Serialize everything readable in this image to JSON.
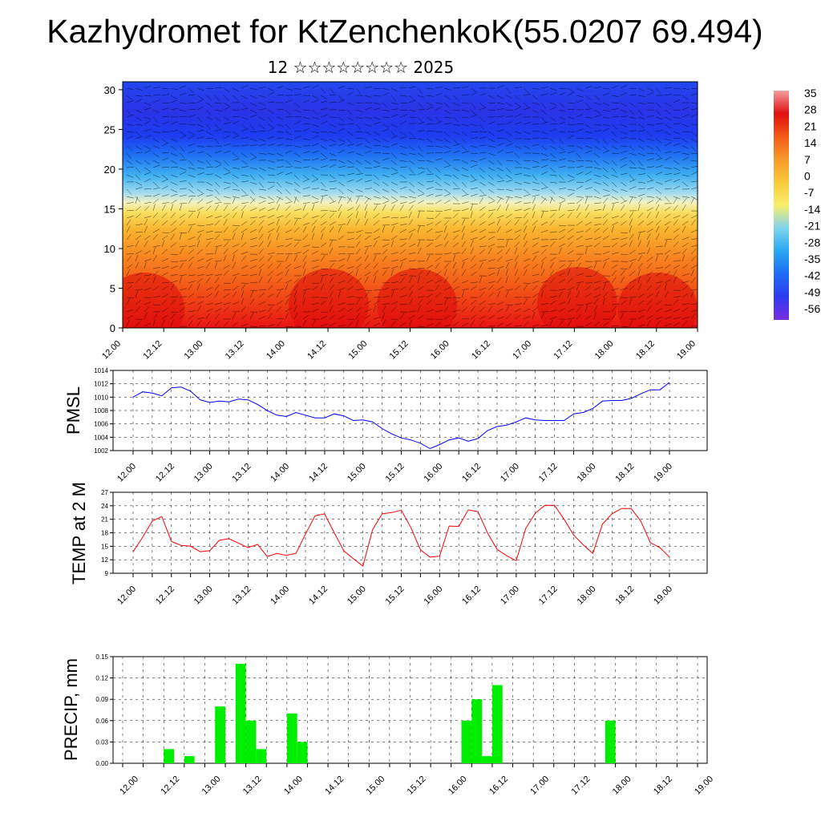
{
  "header": {
    "title": "Kazhydromet for KtZenchenkoK(55.0207 69.494)",
    "subtitle": "12 ☆☆☆☆☆☆☆☆ 2025"
  },
  "colors": {
    "pmsl_line": "#0000ff",
    "temp_line": "#ff0000",
    "precip_bar": "#00ee00",
    "colormap": [
      "#7a2ee0",
      "#2e3bf0",
      "#1f6cf5",
      "#29a8f0",
      "#7fd3ef",
      "#f7ef6a",
      "#f9c93a",
      "#f79a2a",
      "#f25a16",
      "#e01010",
      "#f4a0a0"
    ]
  },
  "time_ticks": [
    "12.00",
    "12.12",
    "13.00",
    "13.12",
    "14.00",
    "14.12",
    "15.00",
    "15.12",
    "16.00",
    "16.12",
    "17.00",
    "17.12",
    "18.00",
    "18.12",
    "19.00"
  ],
  "chart_data": [
    {
      "type": "heatmap",
      "name": "section",
      "xlabel": "",
      "ylabel": "",
      "y_ticks": [
        "0",
        "5",
        "10",
        "15",
        "20",
        "25",
        "30"
      ],
      "ylim": [
        0,
        31
      ],
      "colorbar_labels": [
        "35",
        "28",
        "21",
        "14",
        "7",
        "0",
        "-7",
        "-14",
        "-21",
        "-28",
        "-35",
        "-42",
        "-49",
        "-56"
      ],
      "note_levels": {
        "warm_layer_top": 15,
        "cold_core": 25
      }
    },
    {
      "type": "line",
      "name": "pmsl",
      "ylabel": "PMSL",
      "ylim": [
        1002,
        1014
      ],
      "y_ticks": [
        "1014",
        "1012",
        "1010",
        "1008",
        "1006",
        "1004",
        "1002"
      ],
      "x": [
        0,
        0.125,
        0.25,
        0.375,
        0.5,
        0.625,
        0.75,
        0.875,
        1,
        1.125,
        1.25,
        1.375,
        1.5,
        1.625,
        1.75,
        1.875,
        2,
        2.125,
        2.25,
        2.375,
        2.5,
        2.625,
        2.75,
        2.875,
        3,
        3.125,
        3.25,
        3.375,
        3.5,
        3.625,
        3.75,
        3.875,
        4,
        4.125,
        4.25,
        4.375,
        4.5,
        4.625,
        4.75,
        4.875,
        5,
        5.125,
        5.25,
        5.375,
        5.5,
        5.625,
        5.75,
        5.875,
        6,
        6.125,
        6.25,
        6.375,
        6.5,
        6.625,
        6.75,
        6.875,
        7
      ],
      "values": [
        1010.0,
        1010.8,
        1010.6,
        1010.2,
        1011.4,
        1011.5,
        1010.9,
        1009.6,
        1009.2,
        1009.4,
        1009.3,
        1009.7,
        1009.6,
        1008.9,
        1008.0,
        1007.3,
        1007.1,
        1007.7,
        1007.3,
        1006.9,
        1006.9,
        1007.5,
        1007.2,
        1006.5,
        1006.6,
        1006.3,
        1005.3,
        1004.5,
        1003.9,
        1003.6,
        1003.1,
        1002.3,
        1002.9,
        1003.6,
        1003.9,
        1003.4,
        1003.8,
        1005.0,
        1005.6,
        1005.8,
        1006.3,
        1006.9,
        1006.6,
        1006.5,
        1006.5,
        1006.5,
        1007.5,
        1007.7,
        1008.3,
        1009.4,
        1009.5,
        1009.5,
        1009.8,
        1010.5,
        1011.1,
        1011.1,
        1012.2
      ]
    },
    {
      "type": "line",
      "name": "temp",
      "ylabel": "TEMP at 2 M",
      "ylim": [
        9,
        27
      ],
      "y_ticks": [
        "27",
        "24",
        "21",
        "18",
        "15",
        "12",
        "9"
      ],
      "x": [
        0,
        0.125,
        0.25,
        0.375,
        0.5,
        0.625,
        0.75,
        0.875,
        1,
        1.125,
        1.25,
        1.375,
        1.5,
        1.625,
        1.75,
        1.875,
        2,
        2.125,
        2.25,
        2.375,
        2.5,
        2.625,
        2.75,
        2.875,
        3,
        3.125,
        3.25,
        3.375,
        3.5,
        3.625,
        3.75,
        3.875,
        4,
        4.125,
        4.25,
        4.375,
        4.5,
        4.625,
        4.75,
        4.875,
        5,
        5.125,
        5.25,
        5.375,
        5.5,
        5.625,
        5.75,
        5.875,
        6,
        6.125,
        6.25,
        6.375,
        6.5,
        6.625,
        6.75,
        6.875,
        7
      ],
      "values": [
        13.8,
        17.0,
        20.6,
        21.6,
        16.1,
        15.2,
        15.0,
        13.8,
        14.0,
        16.3,
        16.7,
        15.7,
        14.7,
        15.4,
        12.7,
        13.4,
        13.0,
        13.4,
        17.7,
        21.8,
        22.2,
        18.0,
        14.0,
        12.2,
        10.6,
        18.7,
        22.2,
        22.5,
        23.0,
        19.2,
        14.2,
        12.6,
        12.8,
        19.5,
        19.4,
        23.1,
        22.7,
        18.0,
        14.3,
        12.9,
        11.8,
        19.0,
        22.4,
        24.1,
        24.1,
        21.0,
        17.5,
        15.3,
        13.4,
        19.9,
        22.2,
        23.4,
        23.4,
        20.6,
        15.8,
        14.7,
        12.6
      ]
    },
    {
      "type": "bar",
      "name": "precip",
      "ylabel": "PRECIP, mm",
      "ylim": [
        0,
        0.15
      ],
      "y_ticks": [
        "0.15",
        "0.12",
        "0.09",
        "0.06",
        "0.03",
        "0.00"
      ],
      "x": [
        0.5,
        0.75,
        1.125,
        1.375,
        1.5,
        1.625,
        2.0,
        2.125,
        4.125,
        4.25,
        4.375,
        4.5,
        5.875
      ],
      "values": [
        0.02,
        0.01,
        0.08,
        0.14,
        0.06,
        0.02,
        0.07,
        0.03,
        0.06,
        0.09,
        0.01,
        0.11,
        0.06
      ]
    }
  ]
}
